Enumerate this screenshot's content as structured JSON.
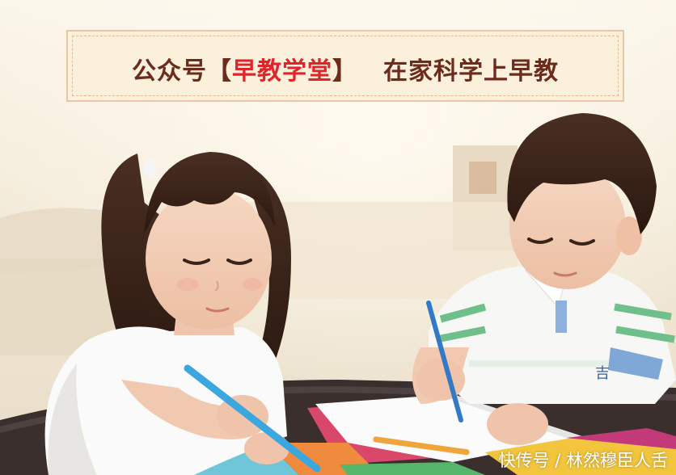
{
  "banner": {
    "prefix": "公众号【",
    "account": "早教学堂",
    "suffix": "】",
    "slogan": "在家科学上早教"
  },
  "shirt_mark": "吉",
  "watermark": "快传号 / 林然穆臣人舌"
}
